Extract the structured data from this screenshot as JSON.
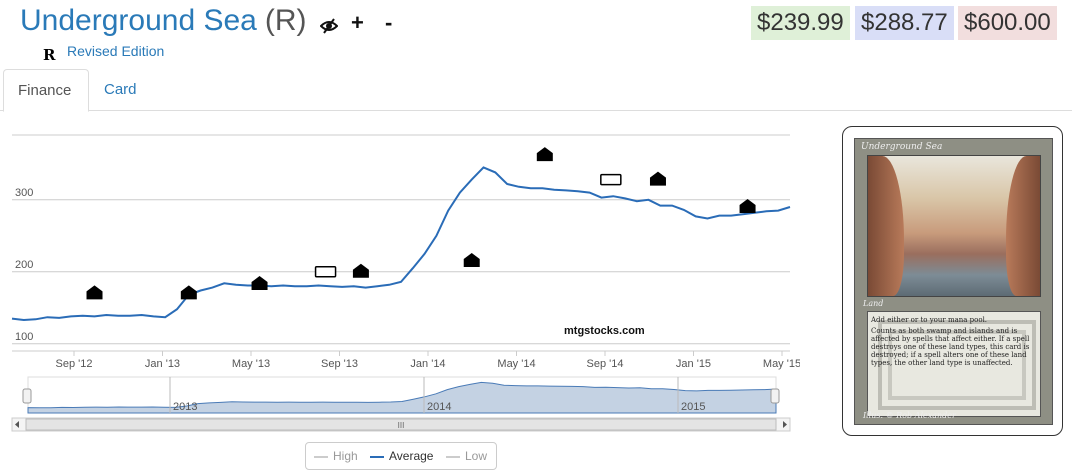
{
  "card": {
    "name": "Underground Sea",
    "rarity": "(R)",
    "set_icon": "R",
    "set_name": "Revised Edition"
  },
  "toolbar": {
    "eye_icon": "eye-slash-icon",
    "plus_label": "+",
    "minus_label": "-"
  },
  "prices": [
    {
      "label": "$239.99",
      "bg": "#dff0d8"
    },
    {
      "label": "$288.77",
      "bg": "#d9def7"
    },
    {
      "label": "$600.00",
      "bg": "#f2dede"
    }
  ],
  "tabs": [
    {
      "label": "Finance",
      "active": true
    },
    {
      "label": "Card",
      "active": false
    }
  ],
  "chart_data": {
    "type": "line",
    "ylim": [
      90,
      390
    ],
    "yticks": [
      100,
      200,
      300
    ],
    "xticks": [
      "Sep '12",
      "Jan '13",
      "May '13",
      "Sep '13",
      "Jan '14",
      "May '14",
      "Sep '14",
      "Jan '15",
      "May '15"
    ],
    "series": [
      {
        "name": "Average",
        "color": "#2a6cb7",
        "x": [
          0,
          0.5,
          1,
          1.5,
          2,
          2.5,
          3,
          3.5,
          4,
          4.5,
          5,
          5.5,
          6,
          6.5,
          7,
          7.5,
          8,
          8.5,
          9,
          9.5,
          10,
          10.5,
          11,
          11.5,
          12,
          12.5,
          13,
          13.5,
          14,
          14.5,
          15,
          15.5,
          16,
          16.5,
          17,
          17.5,
          18,
          18.5,
          19,
          19.5,
          20,
          20.5,
          21,
          21.5,
          22,
          22.5,
          23,
          23.5,
          24,
          24.5,
          25,
          25.5,
          26,
          26.5,
          27,
          27.5,
          28,
          28.5,
          29,
          29.5,
          30,
          30.5,
          31,
          31.5,
          32,
          32.5,
          33
        ],
        "values": [
          135,
          133,
          134,
          137,
          136,
          138,
          139,
          138,
          140,
          139,
          139,
          140,
          138,
          137,
          148,
          168,
          174,
          178,
          184,
          182,
          181,
          181,
          180,
          181,
          180,
          180,
          181,
          180,
          179,
          180,
          178,
          180,
          182,
          186,
          205,
          225,
          250,
          285,
          310,
          328,
          345,
          338,
          322,
          318,
          316,
          316,
          314,
          313,
          312,
          310,
          303,
          305,
          302,
          298,
          300,
          292,
          292,
          286,
          277,
          274,
          278,
          278,
          280,
          282,
          284,
          285,
          290
        ]
      },
      {
        "name": "High",
        "color": "#cccccc",
        "visible": false
      },
      {
        "name": "Low",
        "color": "#cccccc",
        "visible": false
      }
    ],
    "navigator": {
      "years": [
        "2013",
        "2014",
        "2015"
      ]
    },
    "annotations": [
      {
        "x": 3.5,
        "y": 170,
        "icon": "set-icon"
      },
      {
        "x": 7.5,
        "y": 170,
        "icon": "set-icon"
      },
      {
        "x": 10.5,
        "y": 183,
        "icon": "set-icon"
      },
      {
        "x": 13.3,
        "y": 200,
        "icon": "m14-set-icon"
      },
      {
        "x": 14.8,
        "y": 200,
        "icon": "set-icon"
      },
      {
        "x": 19.5,
        "y": 215,
        "icon": "set-icon"
      },
      {
        "x": 22.6,
        "y": 362,
        "icon": "set-icon"
      },
      {
        "x": 25.4,
        "y": 328,
        "icon": "m15-set-icon"
      },
      {
        "x": 27.4,
        "y": 328,
        "icon": "set-icon"
      },
      {
        "x": 31.2,
        "y": 290,
        "icon": "set-icon"
      }
    ],
    "watermark": "mtgstocks.com"
  },
  "legend": {
    "high": "High",
    "average": "Average",
    "low": "Low"
  },
  "card_image": {
    "name": "Underground Sea",
    "type": "Land",
    "text_1": "Add either or to your mana pool.",
    "text_2": "Counts as both swamp and islands and is affected by spells that affect either. If a spell destroys one of these land types, this card is destroyed; if a spell alters one of these land types, the other land type is unaffected.",
    "illus": "Illus. © Rob Alexander"
  },
  "scrollbar": {
    "grip": "III"
  }
}
